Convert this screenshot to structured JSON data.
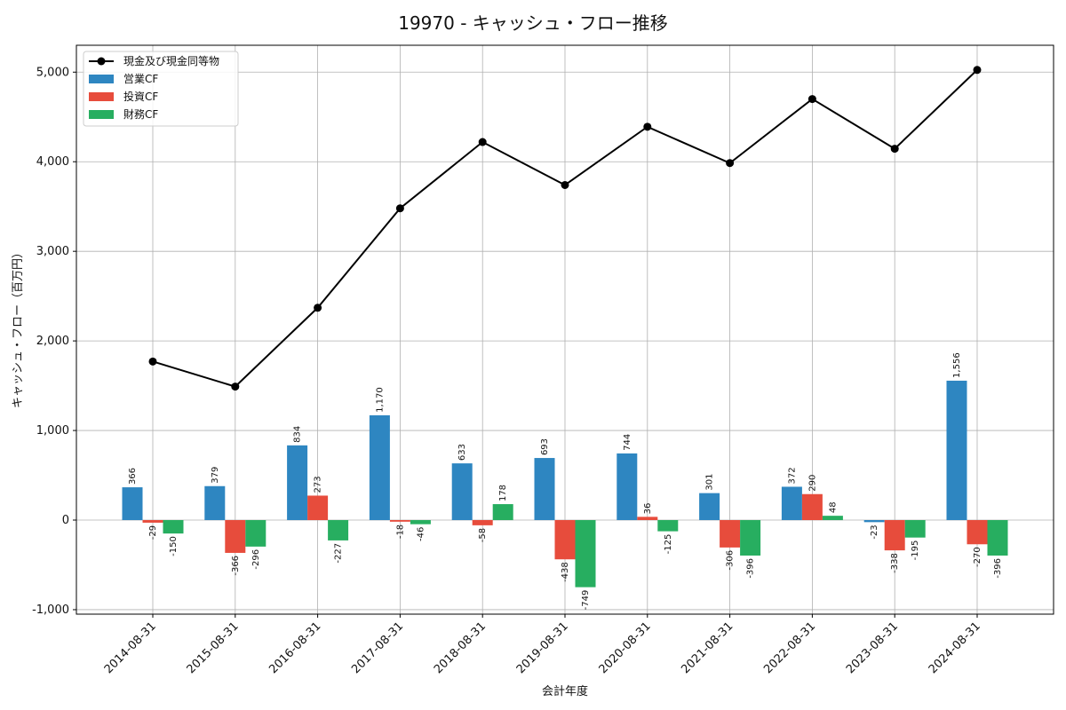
{
  "chart_data": {
    "type": "bar",
    "title": "19970 - キャッシュ・フロー推移",
    "xlabel": "会計年度",
    "ylabel": "キャッシュ・フロー（百万円）",
    "categories": [
      "2014-08-31",
      "2015-08-31",
      "2016-08-31",
      "2017-08-31",
      "2018-08-31",
      "2019-08-31",
      "2020-08-31",
      "2021-08-31",
      "2022-08-31",
      "2023-08-31",
      "2024-08-31"
    ],
    "ylim": [
      -1050,
      5300
    ],
    "yticks": [
      -1000,
      0,
      1000,
      2000,
      3000,
      4000,
      5000
    ],
    "ytick_labels": [
      "-1,000",
      "0",
      "1,000",
      "2,000",
      "3,000",
      "4,000",
      "5,000"
    ],
    "grid": true,
    "legend_position": "top-left",
    "series": [
      {
        "name": "営業CF",
        "kind": "bar",
        "color": "#2e86c1",
        "values": [
          366,
          379,
          834,
          1170,
          633,
          693,
          744,
          301,
          372,
          -23,
          1556
        ],
        "labels": [
          "366",
          "379",
          "834",
          "1,170",
          "633",
          "693",
          "744",
          "301",
          "372",
          "-23",
          "1,556"
        ]
      },
      {
        "name": "投資CF",
        "kind": "bar",
        "color": "#e74c3c",
        "values": [
          -29,
          -366,
          273,
          -18,
          -58,
          -438,
          36,
          -306,
          290,
          -338,
          -270
        ],
        "labels": [
          "-29",
          "-366",
          "273",
          "-18",
          "-58",
          "-438",
          "36",
          "-306",
          "290",
          "-338",
          "-270"
        ]
      },
      {
        "name": "財務CF",
        "kind": "bar",
        "color": "#27ae60",
        "values": [
          -150,
          -296,
          -227,
          -46,
          178,
          -749,
          -125,
          -396,
          48,
          -195,
          -396
        ],
        "labels": [
          "-150",
          "-296",
          "-227",
          "-46",
          "178",
          "-749",
          "-125",
          "-396",
          "48",
          "-195",
          "-396"
        ]
      },
      {
        "name": "現金及び現金同等物",
        "kind": "line",
        "color": "#000000",
        "values": [
          1770,
          1490,
          2370,
          3480,
          4220,
          3740,
          4390,
          3985,
          4700,
          4145,
          5025
        ]
      }
    ]
  }
}
